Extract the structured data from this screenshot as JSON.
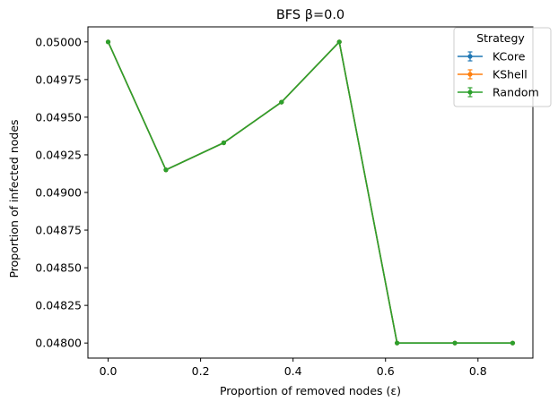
{
  "chart_data": {
    "type": "line",
    "title": "BFS β=0.0",
    "xlabel": "Proportion of removed nodes (ε)",
    "ylabel": "Proportion of infected nodes",
    "x": [
      0.0,
      0.125,
      0.25,
      0.375,
      0.5,
      0.625,
      0.75,
      0.875
    ],
    "xlim": [
      -0.04375,
      0.91875
    ],
    "ylim": [
      0.0479,
      0.0501
    ],
    "xticks": [
      0.0,
      0.2,
      0.4,
      0.6,
      0.8
    ],
    "xtick_labels": [
      "0.0",
      "0.2",
      "0.4",
      "0.6",
      "0.8"
    ],
    "yticks": [
      0.048,
      0.04825,
      0.0485,
      0.04875,
      0.049,
      0.04925,
      0.0495,
      0.04975,
      0.05
    ],
    "ytick_labels": [
      "0.04800",
      "0.04825",
      "0.04850",
      "0.04875",
      "0.04900",
      "0.04925",
      "0.04950",
      "0.04975",
      "0.05000"
    ],
    "grid": false,
    "legend": {
      "title": "Strategy",
      "placement": "top-right"
    },
    "series": [
      {
        "name": "KCore",
        "color": "#1f77b4",
        "values": [
          0.05,
          0.04915,
          0.04933,
          0.0496,
          0.05,
          0.048,
          0.048,
          0.048
        ]
      },
      {
        "name": "KShell",
        "color": "#ff7f0e",
        "values": [
          0.05,
          0.04915,
          0.04933,
          0.0496,
          0.05,
          0.048,
          0.048,
          0.048
        ]
      },
      {
        "name": "Random",
        "color": "#2ca02c",
        "values": [
          0.05,
          0.04915,
          0.04933,
          0.0496,
          0.05,
          0.048,
          0.048,
          0.048
        ]
      }
    ]
  }
}
